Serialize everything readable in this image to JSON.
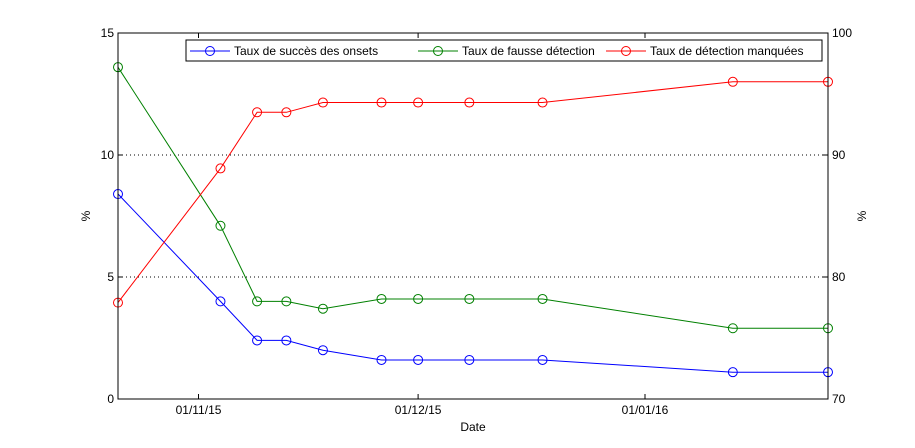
{
  "chart_data": {
    "type": "line",
    "title": "",
    "xlabel": "Date",
    "ylabel_left": "%",
    "ylabel_right": "%",
    "x_ticks": [
      "2015-11-01",
      "2015-12-01",
      "2016-01-01"
    ],
    "x_tick_labels": [
      "01/11/15",
      "01/12/15",
      "01/01/16"
    ],
    "xlim": [
      "2015-10-21",
      "2016-01-26"
    ],
    "ylim_left": [
      0,
      15
    ],
    "yticks_left": [
      "0",
      "5",
      "10",
      "15"
    ],
    "ylim_right": [
      70,
      100
    ],
    "yticks_right": [
      "70",
      "80",
      "90",
      "100"
    ],
    "grid": "horizontal dotted",
    "legend_position": "top-right",
    "series": [
      {
        "name": "Taux de succès des onsets",
        "axis": "left",
        "color": "#0000ff",
        "x": [
          "2015-10-21",
          "2015-11-04",
          "2015-11-09",
          "2015-11-13",
          "2015-11-18",
          "2015-11-26",
          "2015-12-01",
          "2015-12-08",
          "2015-12-18",
          "2016-01-13",
          "2016-01-26"
        ],
        "values": [
          8.4,
          4.0,
          2.4,
          2.4,
          2.0,
          1.6,
          1.6,
          1.6,
          1.6,
          1.1,
          1.1
        ]
      },
      {
        "name": "Taux de fausse détection",
        "axis": "left",
        "color": "#008000",
        "x": [
          "2015-10-21",
          "2015-11-04",
          "2015-11-09",
          "2015-11-13",
          "2015-11-18",
          "2015-11-26",
          "2015-12-01",
          "2015-12-08",
          "2015-12-18",
          "2016-01-13",
          "2016-01-26"
        ],
        "values": [
          13.6,
          7.1,
          4.0,
          4.0,
          3.7,
          4.1,
          4.1,
          4.1,
          4.1,
          2.9,
          2.9
        ]
      },
      {
        "name": "Taux de détection manquées",
        "axis": "right",
        "color": "#ff0000",
        "x": [
          "2015-10-21",
          "2015-11-04",
          "2015-11-09",
          "2015-11-13",
          "2015-11-18",
          "2015-11-26",
          "2015-12-01",
          "2015-12-08",
          "2015-12-18",
          "2016-01-13",
          "2016-01-26"
        ],
        "values": [
          77.9,
          88.9,
          93.5,
          93.5,
          94.3,
          94.3,
          94.3,
          94.3,
          94.3,
          96.0,
          96.0
        ]
      }
    ]
  }
}
